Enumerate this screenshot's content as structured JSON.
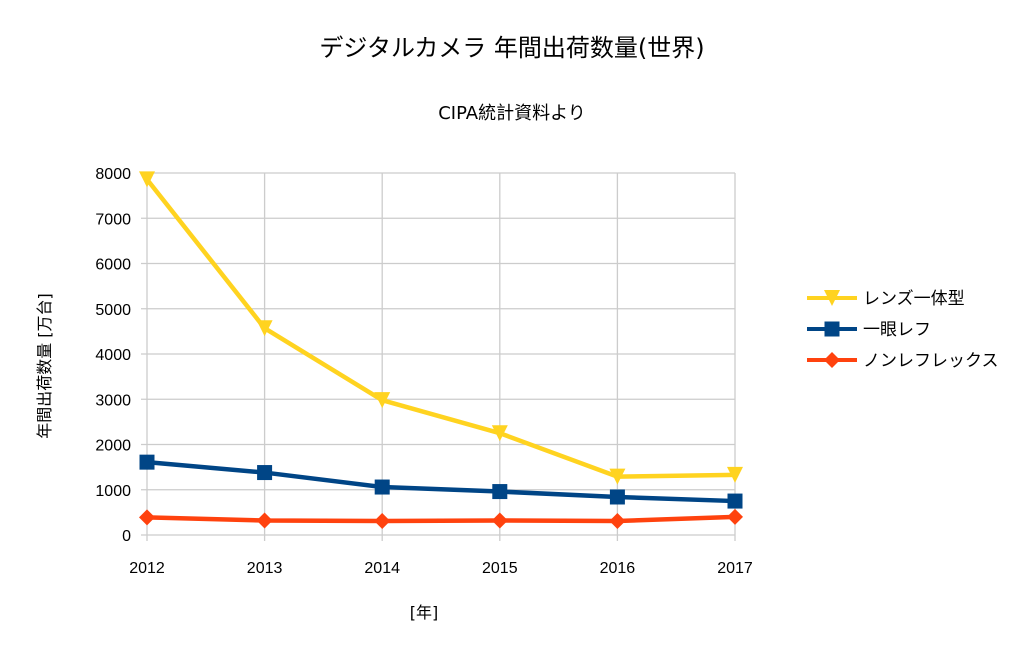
{
  "chart_data": {
    "type": "line",
    "title": "デジタルカメラ  年間出荷数量(世界)",
    "subtitle": "CIPA統計資料より",
    "xlabel": "[年]",
    "ylabel": "年間出荷数量 [万台]",
    "categories": [
      "2012",
      "2013",
      "2014",
      "2015",
      "2016",
      "2017"
    ],
    "ylim": [
      0,
      8000
    ],
    "yticks": [
      0,
      1000,
      2000,
      3000,
      4000,
      5000,
      6000,
      7000,
      8000
    ],
    "grid": true,
    "legend_position": "right",
    "series": [
      {
        "name": "レンズ一体型",
        "marker": "triangle-down",
        "color": "#FFD320",
        "values": [
          7860,
          4570,
          2980,
          2250,
          1290,
          1330
        ]
      },
      {
        "name": "一眼レフ",
        "marker": "square",
        "color": "#004586",
        "values": [
          1610,
          1380,
          1060,
          960,
          840,
          750
        ]
      },
      {
        "name": "ノンレフレックス",
        "marker": "diamond",
        "color": "#FF420E",
        "values": [
          390,
          320,
          310,
          320,
          310,
          400
        ]
      }
    ]
  }
}
